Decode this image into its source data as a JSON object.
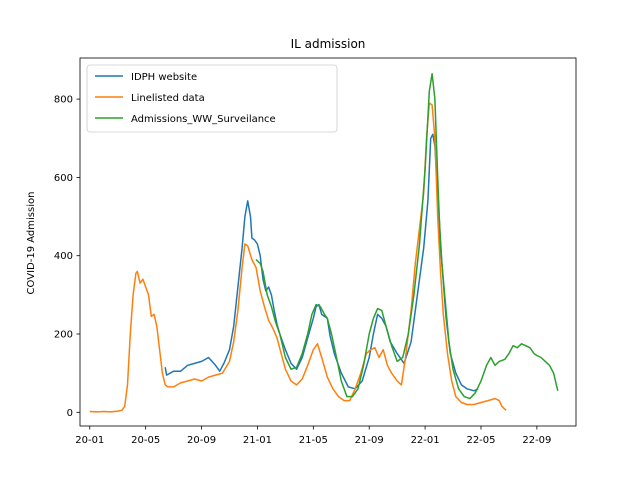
{
  "chart_data": {
    "type": "line",
    "title": "IL admission",
    "xlabel": "",
    "ylabel": "COVID-19 Admission",
    "x_ticks": [
      "20-01",
      "20-05",
      "20-09",
      "21-01",
      "21-05",
      "21-09",
      "22-01",
      "22-05",
      "22-09"
    ],
    "x_tick_months": [
      0,
      4,
      8,
      12,
      16,
      20,
      24,
      28,
      32
    ],
    "xlim": [
      -0.7,
      34.8
    ],
    "ylim": [
      -35,
      905
    ],
    "y_ticks": [
      0,
      200,
      400,
      600,
      800
    ],
    "grid": false,
    "legend_position": "upper-left",
    "series": [
      {
        "name": "IDPH website",
        "color": "#1f77b4",
        "points": [
          [
            5.4,
            115
          ],
          [
            5.5,
            95
          ],
          [
            6.0,
            105
          ],
          [
            6.5,
            105
          ],
          [
            7.0,
            120
          ],
          [
            7.5,
            125
          ],
          [
            8.0,
            130
          ],
          [
            8.5,
            140
          ],
          [
            9.0,
            120
          ],
          [
            9.3,
            105
          ],
          [
            9.6,
            125
          ],
          [
            10.0,
            160
          ],
          [
            10.3,
            220
          ],
          [
            10.6,
            320
          ],
          [
            10.9,
            420
          ],
          [
            11.1,
            500
          ],
          [
            11.3,
            540
          ],
          [
            11.5,
            500
          ],
          [
            11.6,
            445
          ],
          [
            11.8,
            440
          ],
          [
            12.0,
            430
          ],
          [
            12.2,
            400
          ],
          [
            12.4,
            340
          ],
          [
            12.6,
            310
          ],
          [
            12.8,
            320
          ],
          [
            13.0,
            300
          ],
          [
            13.2,
            260
          ],
          [
            13.4,
            225
          ],
          [
            13.6,
            200
          ],
          [
            14.0,
            160
          ],
          [
            14.4,
            125
          ],
          [
            14.8,
            110
          ],
          [
            15.2,
            140
          ],
          [
            15.6,
            190
          ],
          [
            16.0,
            240
          ],
          [
            16.2,
            270
          ],
          [
            16.4,
            275
          ],
          [
            16.6,
            250
          ],
          [
            16.8,
            245
          ],
          [
            17.0,
            240
          ],
          [
            17.2,
            195
          ],
          [
            17.5,
            150
          ],
          [
            18.0,
            100
          ],
          [
            18.5,
            65
          ],
          [
            19.0,
            60
          ],
          [
            19.5,
            80
          ],
          [
            20.0,
            140
          ],
          [
            20.3,
            200
          ],
          [
            20.6,
            250
          ],
          [
            20.9,
            240
          ],
          [
            21.2,
            220
          ],
          [
            21.5,
            180
          ],
          [
            22.0,
            150
          ],
          [
            22.5,
            125
          ],
          [
            23.0,
            180
          ],
          [
            23.3,
            260
          ],
          [
            23.6,
            340
          ],
          [
            23.9,
            420
          ],
          [
            24.2,
            540
          ],
          [
            24.4,
            700
          ],
          [
            24.55,
            710
          ],
          [
            24.7,
            680
          ],
          [
            24.9,
            560
          ],
          [
            25.2,
            380
          ],
          [
            25.5,
            240
          ],
          [
            25.8,
            150
          ],
          [
            26.2,
            100
          ],
          [
            26.6,
            70
          ],
          [
            27.0,
            60
          ],
          [
            27.5,
            55
          ],
          [
            27.8,
            60
          ]
        ]
      },
      {
        "name": "Linelisted data",
        "color": "#ff7f0e",
        "points": [
          [
            0.0,
            2
          ],
          [
            0.5,
            1
          ],
          [
            1.0,
            2
          ],
          [
            1.5,
            1
          ],
          [
            2.0,
            3
          ],
          [
            2.3,
            5
          ],
          [
            2.5,
            15
          ],
          [
            2.7,
            70
          ],
          [
            2.9,
            200
          ],
          [
            3.1,
            300
          ],
          [
            3.3,
            355
          ],
          [
            3.4,
            360
          ],
          [
            3.6,
            330
          ],
          [
            3.8,
            340
          ],
          [
            4.0,
            320
          ],
          [
            4.2,
            300
          ],
          [
            4.4,
            245
          ],
          [
            4.6,
            250
          ],
          [
            4.8,
            220
          ],
          [
            5.0,
            160
          ],
          [
            5.2,
            100
          ],
          [
            5.4,
            70
          ],
          [
            5.6,
            65
          ],
          [
            6.0,
            65
          ],
          [
            6.5,
            75
          ],
          [
            7.0,
            80
          ],
          [
            7.5,
            85
          ],
          [
            8.0,
            80
          ],
          [
            8.5,
            90
          ],
          [
            9.0,
            95
          ],
          [
            9.5,
            100
          ],
          [
            10.0,
            130
          ],
          [
            10.3,
            180
          ],
          [
            10.6,
            260
          ],
          [
            10.9,
            370
          ],
          [
            11.1,
            430
          ],
          [
            11.3,
            425
          ],
          [
            11.6,
            390
          ],
          [
            11.9,
            370
          ],
          [
            12.2,
            310
          ],
          [
            12.5,
            270
          ],
          [
            12.8,
            235
          ],
          [
            13.1,
            215
          ],
          [
            13.4,
            190
          ],
          [
            13.7,
            150
          ],
          [
            14.0,
            110
          ],
          [
            14.4,
            80
          ],
          [
            14.8,
            70
          ],
          [
            15.2,
            85
          ],
          [
            15.6,
            120
          ],
          [
            16.0,
            160
          ],
          [
            16.3,
            175
          ],
          [
            16.6,
            140
          ],
          [
            17.0,
            90
          ],
          [
            17.4,
            60
          ],
          [
            17.8,
            40
          ],
          [
            18.2,
            30
          ],
          [
            18.6,
            30
          ],
          [
            19.0,
            60
          ],
          [
            19.4,
            100
          ],
          [
            19.8,
            150
          ],
          [
            20.1,
            160
          ],
          [
            20.4,
            165
          ],
          [
            20.7,
            140
          ],
          [
            21.0,
            160
          ],
          [
            21.3,
            120
          ],
          [
            21.6,
            100
          ],
          [
            22.0,
            80
          ],
          [
            22.3,
            70
          ],
          [
            22.6,
            140
          ],
          [
            23.0,
            260
          ],
          [
            23.3,
            380
          ],
          [
            23.6,
            470
          ],
          [
            23.9,
            560
          ],
          [
            24.1,
            700
          ],
          [
            24.3,
            790
          ],
          [
            24.5,
            785
          ],
          [
            24.7,
            700
          ],
          [
            24.9,
            500
          ],
          [
            25.1,
            360
          ],
          [
            25.3,
            250
          ],
          [
            25.6,
            150
          ],
          [
            25.9,
            80
          ],
          [
            26.2,
            40
          ],
          [
            26.6,
            25
          ],
          [
            27.0,
            20
          ],
          [
            27.5,
            20
          ],
          [
            28.0,
            25
          ],
          [
            28.5,
            30
          ],
          [
            29.0,
            35
          ],
          [
            29.3,
            30
          ],
          [
            29.5,
            15
          ],
          [
            29.8,
            5
          ]
        ]
      },
      {
        "name": "Admissions_WW_Surveilance",
        "color": "#2ca02c",
        "points": [
          [
            11.9,
            390
          ],
          [
            12.2,
            380
          ],
          [
            12.4,
            360
          ],
          [
            12.7,
            300
          ],
          [
            13.0,
            270
          ],
          [
            13.3,
            230
          ],
          [
            13.6,
            200
          ],
          [
            14.0,
            140
          ],
          [
            14.4,
            110
          ],
          [
            14.8,
            115
          ],
          [
            15.2,
            150
          ],
          [
            15.6,
            200
          ],
          [
            15.9,
            250
          ],
          [
            16.2,
            275
          ],
          [
            16.5,
            270
          ],
          [
            16.8,
            250
          ],
          [
            17.0,
            240
          ],
          [
            17.3,
            200
          ],
          [
            17.6,
            150
          ],
          [
            18.0,
            80
          ],
          [
            18.4,
            40
          ],
          [
            18.8,
            40
          ],
          [
            19.2,
            60
          ],
          [
            19.6,
            120
          ],
          [
            20.0,
            200
          ],
          [
            20.3,
            240
          ],
          [
            20.6,
            265
          ],
          [
            20.9,
            260
          ],
          [
            21.2,
            220
          ],
          [
            21.6,
            170
          ],
          [
            22.0,
            130
          ],
          [
            22.4,
            140
          ],
          [
            22.8,
            200
          ],
          [
            23.2,
            300
          ],
          [
            23.6,
            430
          ],
          [
            24.0,
            620
          ],
          [
            24.3,
            820
          ],
          [
            24.5,
            865
          ],
          [
            24.7,
            800
          ],
          [
            24.9,
            600
          ],
          [
            25.1,
            420
          ],
          [
            25.4,
            300
          ],
          [
            25.7,
            180
          ],
          [
            26.0,
            110
          ],
          [
            26.4,
            60
          ],
          [
            26.8,
            40
          ],
          [
            27.2,
            35
          ],
          [
            27.6,
            50
          ],
          [
            28.0,
            80
          ],
          [
            28.4,
            120
          ],
          [
            28.7,
            140
          ],
          [
            29.0,
            120
          ],
          [
            29.3,
            130
          ],
          [
            29.7,
            135
          ],
          [
            30.0,
            150
          ],
          [
            30.3,
            170
          ],
          [
            30.6,
            165
          ],
          [
            30.9,
            175
          ],
          [
            31.2,
            170
          ],
          [
            31.5,
            165
          ],
          [
            31.8,
            150
          ],
          [
            32.0,
            145
          ],
          [
            32.3,
            140
          ],
          [
            32.6,
            130
          ],
          [
            32.9,
            120
          ],
          [
            33.2,
            100
          ],
          [
            33.5,
            55
          ]
        ]
      }
    ]
  }
}
